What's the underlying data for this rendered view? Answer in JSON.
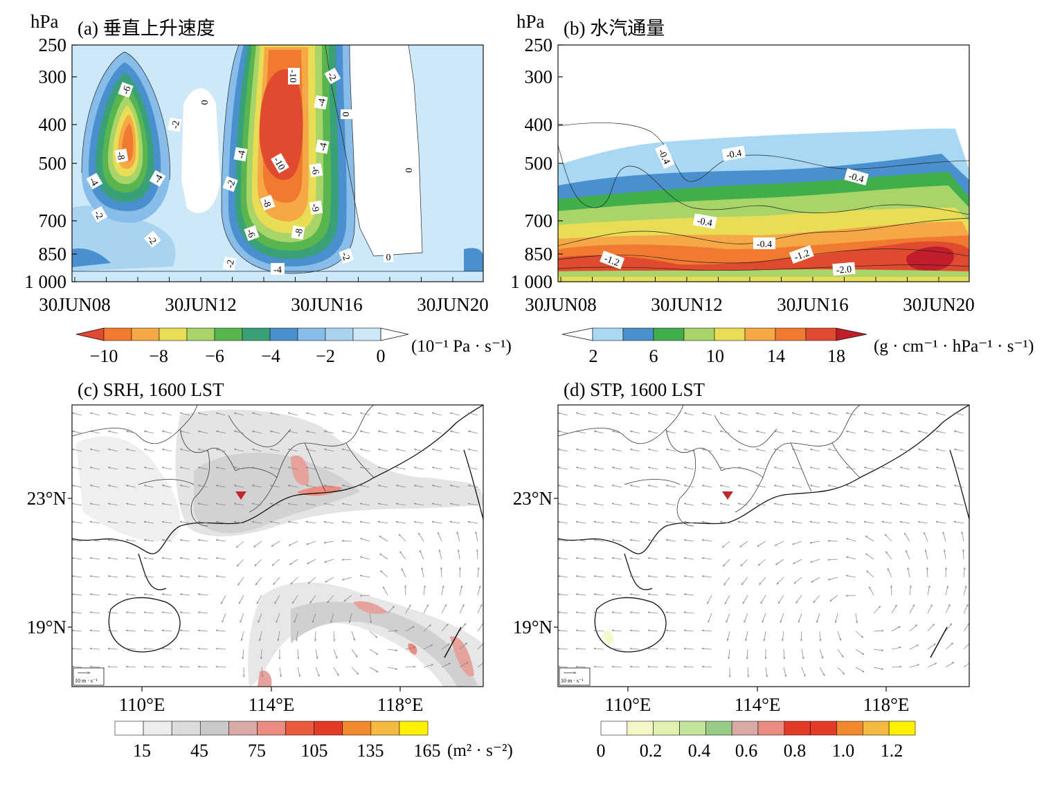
{
  "chart_data": [
    {
      "id": "a",
      "type": "heatmap",
      "title": "(a) 垂直上升速度",
      "ylabel": "hPa",
      "y_ticks": [
        "250",
        "300",
        "400",
        "500",
        "700",
        "850",
        "1 000"
      ],
      "x_ticks": [
        "30JUN08",
        "30JUN12",
        "30JUN16",
        "30JUN20"
      ],
      "colorbar": {
        "ticks": [
          "−10",
          "−8",
          "−6",
          "−4",
          "−2",
          "0"
        ],
        "unit": "(10⁻¹ Pa · s⁻¹)",
        "colors": [
          "#e04a2f",
          "#f07b30",
          "#f5a845",
          "#e9dd55",
          "#a9d46a",
          "#59b64e",
          "#3aa077",
          "#4a8fce",
          "#87bde8",
          "#a8d4f2",
          "#cde9f9",
          "#ffffff"
        ]
      },
      "contour_labels": [
        "-6",
        "-8",
        "-4",
        "-4",
        "-2",
        "-2",
        "-2",
        "0",
        "-10",
        "-2",
        "-4",
        "0",
        "-4",
        "-4",
        "-10",
        "-6",
        "-2",
        "-8",
        "-9",
        "-6",
        "-8",
        "-2",
        "-4",
        "-2",
        "0",
        "0"
      ]
    },
    {
      "id": "b",
      "type": "heatmap",
      "title": "(b) 水汽通量",
      "ylabel": "hPa",
      "y_ticks": [
        "250",
        "300",
        "400",
        "500",
        "700",
        "850",
        "1 000"
      ],
      "x_ticks": [
        "30JUN08",
        "30JUN12",
        "30JUN16",
        "30JUN20"
      ],
      "colorbar": {
        "ticks": [
          "2",
          "6",
          "10",
          "14",
          "18"
        ],
        "unit": "(g · cm⁻¹ · hPa⁻¹ · s⁻¹)",
        "colors": [
          "#ffffff",
          "#a8d8f3",
          "#4a8fce",
          "#3fae4b",
          "#a9d46a",
          "#e9dd55",
          "#f5a845",
          "#f07b30",
          "#e04a2f",
          "#c21d2a"
        ]
      },
      "contour_labels": [
        "-0.4",
        "-0.4",
        "-0.4",
        "-0.4",
        "-0.4",
        "-1.2",
        "-1.2",
        "-2.0"
      ]
    },
    {
      "id": "c",
      "type": "heatmap",
      "title": "(c) SRH, 1600 LST",
      "x_ticks": [
        "110°E",
        "114°E",
        "118°E"
      ],
      "y_ticks": [
        "23°N",
        "19°N"
      ],
      "vector_key": "10 m · s⁻¹",
      "colorbar": {
        "ticks": [
          "15",
          "45",
          "75",
          "105",
          "135",
          "165"
        ],
        "unit": "(m² · s⁻²)",
        "colors": [
          "#ffffff",
          "#ededed",
          "#dcdcdc",
          "#c9c9c9",
          "#d8a9a5",
          "#ec8b80",
          "#ea5a3f",
          "#e23a26",
          "#f08a2c",
          "#f5b942",
          "#fff200"
        ]
      }
    },
    {
      "id": "d",
      "type": "heatmap",
      "title": "(d) STP, 1600 LST",
      "x_ticks": [
        "110°E",
        "114°E",
        "118°E"
      ],
      "y_ticks": [
        "23°N",
        "19°N"
      ],
      "vector_key": "10 m · s⁻¹",
      "colorbar": {
        "ticks": [
          "0",
          "0.2",
          "0.4",
          "0.6",
          "0.8",
          "1.0",
          "1.2"
        ],
        "colors": [
          "#ffffff",
          "#f6f7c6",
          "#e2f0b0",
          "#c3e49a",
          "#95cc85",
          "#d8a9a5",
          "#ec8b80",
          "#e23a26",
          "#e33b27",
          "#f08a2c",
          "#f5b942",
          "#fff200"
        ]
      }
    }
  ]
}
